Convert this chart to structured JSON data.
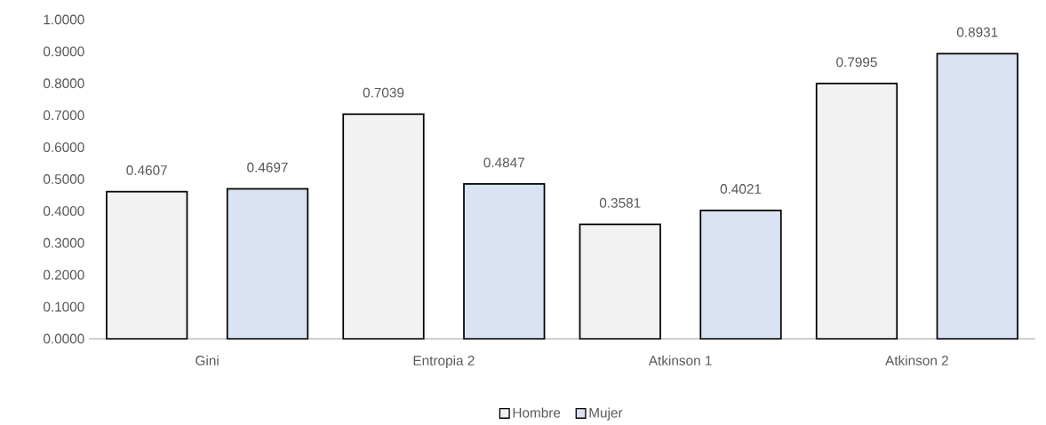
{
  "chart_data": {
    "type": "bar",
    "categories": [
      "Gini",
      "Entropia 2",
      "Atkinson 1",
      "Atkinson 2"
    ],
    "series": [
      {
        "name": "Hombre",
        "color": "#f2f2f2",
        "values": [
          0.4607,
          0.7039,
          0.3581,
          0.7995
        ]
      },
      {
        "name": "Mujer",
        "color": "#dae3f3",
        "values": [
          0.4697,
          0.4847,
          0.4021,
          0.8931
        ]
      }
    ],
    "ylim": [
      0,
      1
    ],
    "yticks": [
      {
        "value": 0,
        "label": "0.0000"
      },
      {
        "value": 0.1,
        "label": "0.1000"
      },
      {
        "value": 0.2,
        "label": "0.2000"
      },
      {
        "value": 0.3,
        "label": "0.3000"
      },
      {
        "value": 0.4,
        "label": "0.4000"
      },
      {
        "value": 0.5,
        "label": "0.5000"
      },
      {
        "value": 0.6,
        "label": "0.6000"
      },
      {
        "value": 0.7,
        "label": "0.7000"
      },
      {
        "value": 0.8,
        "label": "0.8000"
      },
      {
        "value": 0.9,
        "label": "0.9000"
      },
      {
        "value": 1,
        "label": "1.0000"
      }
    ],
    "data_labels": true,
    "grid": false,
    "legend": "bottom"
  }
}
